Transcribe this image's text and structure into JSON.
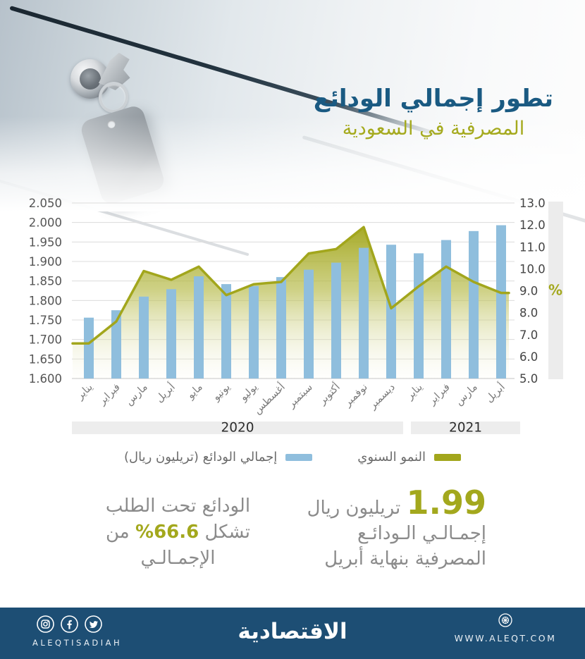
{
  "title": {
    "line1": "تطور إجمالي الودائع",
    "line2": "المصرفية في السعودية"
  },
  "chart_data": {
    "type": "bar+line",
    "categories": [
      "يناير",
      "فبراير",
      "مارس",
      "أبريل",
      "مايو",
      "يونيو",
      "يوليو",
      "أغسطس",
      "سبتمبر",
      "أكتوبر",
      "نوفمبر",
      "ديسمبر",
      "يناير",
      "فبراير",
      "مارس",
      "أبريل"
    ],
    "year_bands": [
      {
        "label": "2020",
        "start": 0,
        "end": 11
      },
      {
        "label": "2021",
        "start": 12,
        "end": 15
      }
    ],
    "series": [
      {
        "name": "إجمالي الودائع (تريليون ريال)",
        "type": "bar",
        "axis": "left",
        "color": "#8fbedd",
        "values": [
          1.756,
          1.775,
          1.81,
          1.829,
          1.862,
          1.842,
          1.837,
          1.86,
          1.879,
          1.897,
          1.935,
          1.943,
          1.921,
          1.955,
          1.978,
          1.993
        ]
      },
      {
        "name": "النمو السنوي",
        "type": "line",
        "axis": "right",
        "color": "#a2a61c",
        "values": [
          6.6,
          7.6,
          9.9,
          9.5,
          10.1,
          8.8,
          9.3,
          9.4,
          10.7,
          10.9,
          11.9,
          8.2,
          9.2,
          10.1,
          9.4,
          8.9
        ]
      }
    ],
    "left_axis": {
      "min": 1.6,
      "max": 2.05,
      "ticks": [
        "2.050",
        "2.000",
        "1.950",
        "1.900",
        "1.850",
        "1.800",
        "1.750",
        "1.700",
        "1.650",
        "1.600"
      ]
    },
    "right_axis": {
      "min": 5.0,
      "max": 13.0,
      "unit": "%",
      "ticks": [
        "13.0",
        "12.0",
        "11.0",
        "10.0",
        "9.0",
        "8.0",
        "7.0",
        "6.0",
        "5.0"
      ]
    },
    "legend": [
      {
        "label": "النمو السنوي",
        "color": "#a2a61c"
      },
      {
        "label": "إجمالي الودائع (تريليون ريال)",
        "color": "#8fbedd"
      }
    ],
    "grid": true,
    "legend_position": "bottom"
  },
  "stats": {
    "right": {
      "value": "1.99",
      "unit": "تريليون ريال",
      "line2": "إجمـالـي الـودائـع",
      "line3": "المصرفية بنهاية أبريل"
    },
    "left": {
      "line1": "الودائع تحت الطلب",
      "line2_prefix": "تشكل ",
      "line2_pct": "66.6%",
      "line2_suffix": " من",
      "line3": "الإجمـالـي"
    }
  },
  "footer": {
    "brand": "الاقتصادية",
    "handle": "ALEQTISADIAH",
    "url": "WWW.ALEQT.COM",
    "icons": [
      "instagram-icon",
      "facebook-icon",
      "twitter-icon",
      "globe-icon"
    ]
  },
  "colors": {
    "accent_olive": "#a3a81d",
    "accent_blue_bar": "#8fbedd",
    "title_blue": "#1a5a82",
    "footer_navy": "#1d4e74",
    "text_gray": "#8b8b8b"
  }
}
